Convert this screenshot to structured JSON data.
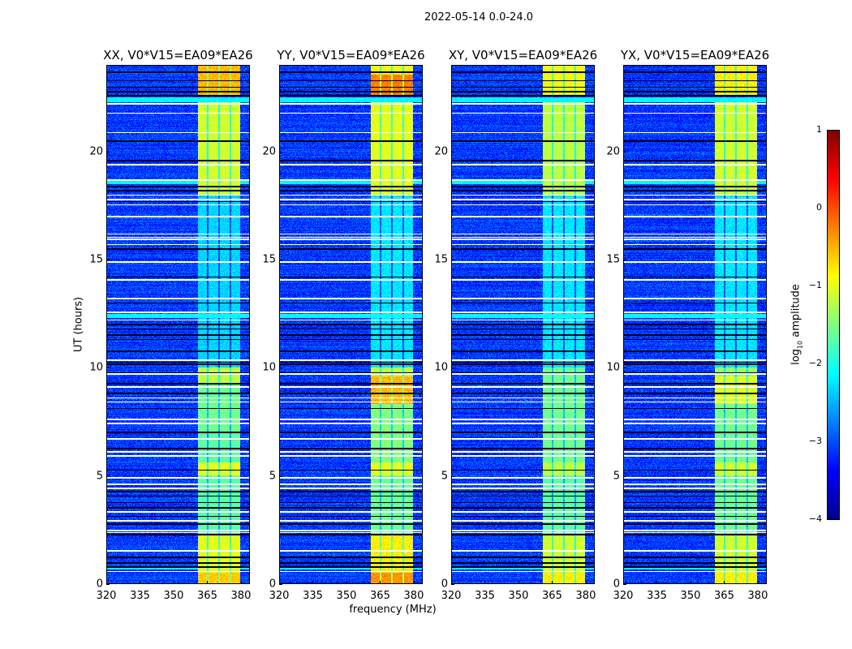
{
  "chart_data": {
    "type": "heatmap",
    "title": "2022-05-14 0.0-24.0",
    "xlabel": "frequency (MHz)",
    "ylabel": "UT (hours)",
    "xlim": [
      320,
      384
    ],
    "ylim": [
      0,
      24
    ],
    "xticks": [
      320,
      335,
      350,
      365,
      380
    ],
    "yticks": [
      0,
      5,
      10,
      15,
      20
    ],
    "colormap": "jet",
    "colorbar": {
      "label_prefix": "log",
      "label_sub": "10",
      "label_suffix": " amplitude",
      "range": [
        -4,
        1
      ],
      "ticks": [
        1,
        0,
        -1,
        -2,
        -3,
        -4
      ],
      "tick_labels": [
        "1",
        "0",
        "−1",
        "−2",
        "−3",
        "−4"
      ]
    },
    "background_log10_amplitude": -3.2,
    "rfi_band_MHz": [
      361,
      380
    ],
    "rfi_subband_gaps_MHz": [
      365.5,
      370.5,
      375.5
    ],
    "flagged_white_rows_hours": [
      0.55,
      1.5,
      2.35,
      2.45,
      2.9,
      3.3,
      4.4,
      4.6,
      4.9,
      5.9,
      6.1,
      6.7,
      7.4,
      7.6,
      8.4,
      8.6,
      9.1,
      9.7,
      10.35,
      12.2,
      12.56,
      13.2,
      14.06,
      14.9,
      15.7,
      15.95,
      16.05,
      16.2,
      17.0,
      17.55,
      17.8,
      18.0,
      18.7,
      19.4,
      20.9,
      21.8,
      22.24
    ],
    "zero_black_rows_hours": [
      0.75,
      0.95,
      1.2,
      2.25,
      2.75,
      3.1,
      3.5,
      3.75,
      4.05,
      4.25,
      5.25,
      6.25,
      7.0,
      8.1,
      8.8,
      9.25,
      9.75,
      10.15,
      10.25,
      10.75,
      11.3,
      11.5,
      11.8,
      12.0,
      13.0,
      14.2,
      15.5,
      17.7,
      18.2,
      18.4,
      19.6,
      20.5,
      22.6,
      22.8,
      23.0,
      23.3,
      23.7
    ],
    "elevated_rows_hours": [
      [
        0.65,
        0.8
      ],
      [
        12.3,
        12.5
      ],
      [
        18.5,
        18.7
      ],
      [
        22.3,
        22.55
      ]
    ],
    "panels": [
      {
        "title": "XX, V0*V15=EA09*EA26",
        "band_log10_amplitude": [
          [
            0,
            0.5,
            -0.6
          ],
          [
            0.5,
            2.3,
            -1.0
          ],
          [
            2.3,
            5,
            -1.7
          ],
          [
            5,
            5.6,
            -1.0
          ],
          [
            5.6,
            7,
            -1.7
          ],
          [
            7,
            9.2,
            -1.6
          ],
          [
            9.2,
            10,
            -1.2
          ],
          [
            10,
            18,
            -2.4
          ],
          [
            18,
            22.3,
            -1.1
          ],
          [
            22.6,
            24,
            -0.5
          ]
        ]
      },
      {
        "title": "YY, V0*V15=EA09*EA26",
        "band_log10_amplitude": [
          [
            0,
            0.5,
            -0.3
          ],
          [
            0.5,
            2.3,
            -0.8
          ],
          [
            2.3,
            5,
            -1.6
          ],
          [
            5,
            5.6,
            -1.0
          ],
          [
            5.6,
            8.3,
            -1.5
          ],
          [
            8.3,
            9.6,
            -0.5
          ],
          [
            9.6,
            10,
            -1.2
          ],
          [
            10,
            18,
            -2.3
          ],
          [
            18,
            22.3,
            -1.0
          ],
          [
            22.6,
            23.6,
            -0.2
          ],
          [
            23.6,
            24,
            -0.9
          ]
        ]
      },
      {
        "title": "XY, V0*V15=EA09*EA26",
        "band_log10_amplitude": [
          [
            0,
            0.5,
            -0.8
          ],
          [
            0.5,
            2.3,
            -1.1
          ],
          [
            2.3,
            5,
            -1.7
          ],
          [
            5,
            5.6,
            -1.2
          ],
          [
            5.6,
            10,
            -1.6
          ],
          [
            10,
            18,
            -2.3
          ],
          [
            18,
            22.3,
            -1.2
          ],
          [
            22.6,
            24,
            -0.9
          ]
        ]
      },
      {
        "title": "YX, V0*V15=EA09*EA26",
        "band_log10_amplitude": [
          [
            0,
            0.5,
            -0.8
          ],
          [
            0.5,
            2.3,
            -1.1
          ],
          [
            2.3,
            5,
            -1.6
          ],
          [
            5,
            5.6,
            -1.1
          ],
          [
            5.6,
            8.3,
            -1.6
          ],
          [
            8.3,
            9.6,
            -1.0
          ],
          [
            9.6,
            10,
            -1.4
          ],
          [
            10,
            18,
            -2.3
          ],
          [
            18,
            22.3,
            -1.1
          ],
          [
            22.6,
            24,
            -0.8
          ]
        ]
      }
    ]
  }
}
